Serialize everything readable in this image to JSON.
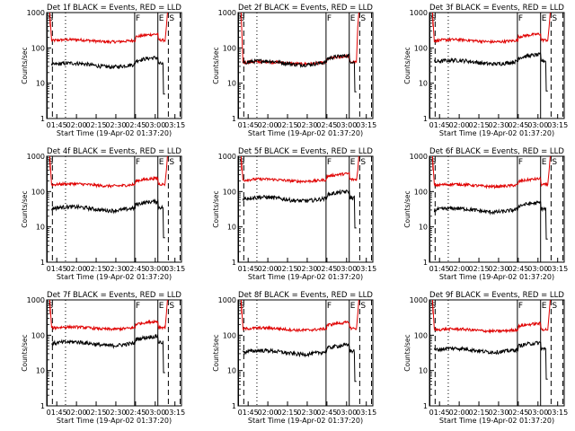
{
  "figure": {
    "panels": [
      {
        "title": "Det 1f BLACK = Events, RED = LLD",
        "xlabel": "Start Time (19-Apr-02 01:37:20)",
        "ylabel": "Counts/sec"
      },
      {
        "title": "Det 2f BLACK = Events, RED = LLD",
        "xlabel": "Start Time (19-Apr-02 01:37:20)",
        "ylabel": "Counts/sec"
      },
      {
        "title": "Det 3f BLACK = Events, RED = LLD",
        "xlabel": "Start Time (19-Apr-02 01:37:20)",
        "ylabel": "Counts/sec"
      },
      {
        "title": "Det 4f BLACK = Events, RED = LLD",
        "xlabel": "Start Time (19-Apr-02 01:37:20)",
        "ylabel": "Counts/sec"
      },
      {
        "title": "Det 5f BLACK = Events, RED = LLD",
        "xlabel": "Start Time (19-Apr-02 01:37:20)",
        "ylabel": "Counts/sec"
      },
      {
        "title": "Det 6f BLACK = Events, RED = LLD",
        "xlabel": "Start Time (19-Apr-02 01:37:20)",
        "ylabel": "Counts/sec"
      },
      {
        "title": "Det 7f BLACK = Events, RED = LLD",
        "xlabel": "Start Time (19-Apr-02 01:37:20)",
        "ylabel": "Counts/sec"
      },
      {
        "title": "Det 8f BLACK = Events, RED = LLD",
        "xlabel": "Start Time (19-Apr-02 01:37:20)",
        "ylabel": "Counts/sec"
      },
      {
        "title": "Det 9f BLACK = Events, RED = LLD",
        "xlabel": "Start Time (19-Apr-02 01:37:20)",
        "ylabel": "Counts/sec"
      }
    ]
  },
  "chart_data": {
    "type": "line",
    "layout": "3x3 grid",
    "y_scale": "log",
    "ylim": [
      1,
      1000
    ],
    "y_ticks": [
      "1",
      "10",
      "100",
      "1000"
    ],
    "xlim": [
      "01:37:20",
      "03:20:00"
    ],
    "x_ticks": [
      "01:45",
      "02:00",
      "02:15",
      "02:30",
      "02:45",
      "03:00",
      "03:15"
    ],
    "colors": {
      "events": "#000000",
      "lld": "#e00000"
    },
    "markers": [
      {
        "label": "S",
        "time": "01:37:40",
        "style": "solid"
      },
      {
        "label": "",
        "time": "01:41:40",
        "style": "dashed"
      },
      {
        "label": "",
        "time": "01:51:40",
        "style": "dotted"
      },
      {
        "label": "F",
        "time": "02:44:20",
        "style": "solid"
      },
      {
        "label": "E",
        "time": "03:02:00",
        "style": "solid"
      },
      {
        "label": "S",
        "time": "03:10:00",
        "style": "dashed"
      },
      {
        "label": "",
        "time": "03:19:00",
        "style": "dashed"
      }
    ],
    "panels": [
      {
        "detector": "1f",
        "events_level": 33,
        "lld_level": 160
      },
      {
        "detector": "2f",
        "events_level": 38,
        "lld_level": 38
      },
      {
        "detector": "3f",
        "events_level": 40,
        "lld_level": 160
      },
      {
        "detector": "4f",
        "events_level": 33,
        "lld_level": 155
      },
      {
        "detector": "5f",
        "events_level": 62,
        "lld_level": 210
      },
      {
        "detector": "6f",
        "events_level": 30,
        "lld_level": 150
      },
      {
        "detector": "7f",
        "events_level": 58,
        "lld_level": 160
      },
      {
        "detector": "8f",
        "events_level": 33,
        "lld_level": 150
      },
      {
        "detector": "9f",
        "events_level": 38,
        "lld_level": 140
      }
    ]
  }
}
